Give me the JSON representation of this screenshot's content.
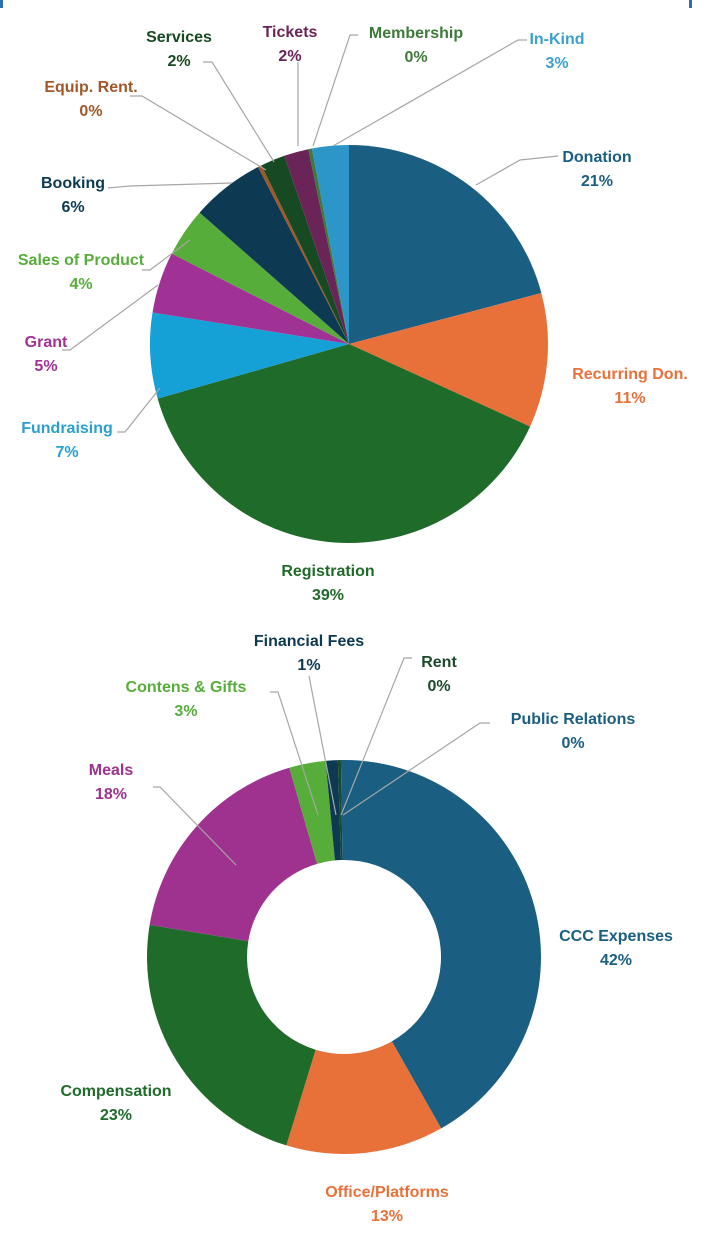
{
  "chart_data": [
    {
      "type": "pie",
      "unit": "%",
      "categories": [
        "Donation",
        "Recurring Don.",
        "Registration",
        "Fundraising",
        "Grant",
        "Sales of Product",
        "Booking",
        "Equip. Rent.",
        "Services",
        "Tickets",
        "Membership",
        "In-Kind"
      ],
      "values": [
        21,
        11,
        39,
        7,
        5,
        4,
        6,
        0,
        2,
        2,
        0,
        3
      ],
      "labels": [
        "21%",
        "11%",
        "39%",
        "7%",
        "5%",
        "4%",
        "6%",
        "0%",
        "2%",
        "2%",
        "0%",
        "3%"
      ],
      "colors": [
        "#1a5e82",
        "#e8713a",
        "#1f6b2a",
        "#15a0d6",
        "#a03296",
        "#57ad3a",
        "#0d3a52",
        "#a0582a",
        "#174a22",
        "#6a2458",
        "#3d7a3a",
        "#2c96c9"
      ],
      "label_colors": [
        "#1a5e82",
        "#e8713a",
        "#1f6b2a",
        "#2aa0d0",
        "#a03296",
        "#57ad3a",
        "#0d3a52",
        "#a0582a",
        "#174a22",
        "#6a2458",
        "#3d7a3a",
        "#3aa0cf"
      ],
      "legend": "none (data labels with leader lines)"
    },
    {
      "type": "donut",
      "unit": "%",
      "categories": [
        "CCC Expenses",
        "Office/Platforms",
        "Compensation",
        "Meals",
        "Contens & Gifts",
        "Financial Fees",
        "Rent",
        "Public Relations"
      ],
      "values": [
        42,
        13,
        23,
        18,
        3,
        1,
        0,
        0
      ],
      "labels": [
        "42%",
        "13%",
        "23%",
        "18%",
        "3%",
        "1%",
        "0%",
        "0%"
      ],
      "colors": [
        "#1a5e82",
        "#e8713a",
        "#1f6b2a",
        "#a0328f",
        "#57ad3a",
        "#0d3a52",
        "#1b4a2a",
        "#1a5e82"
      ],
      "label_colors": [
        "#1a5e82",
        "#e8713a",
        "#1f6b2a",
        "#a0328f",
        "#57ad3a",
        "#0d3a52",
        "#1b4a2a",
        "#1a5e82"
      ],
      "legend": "none (data labels with leader lines)"
    }
  ]
}
